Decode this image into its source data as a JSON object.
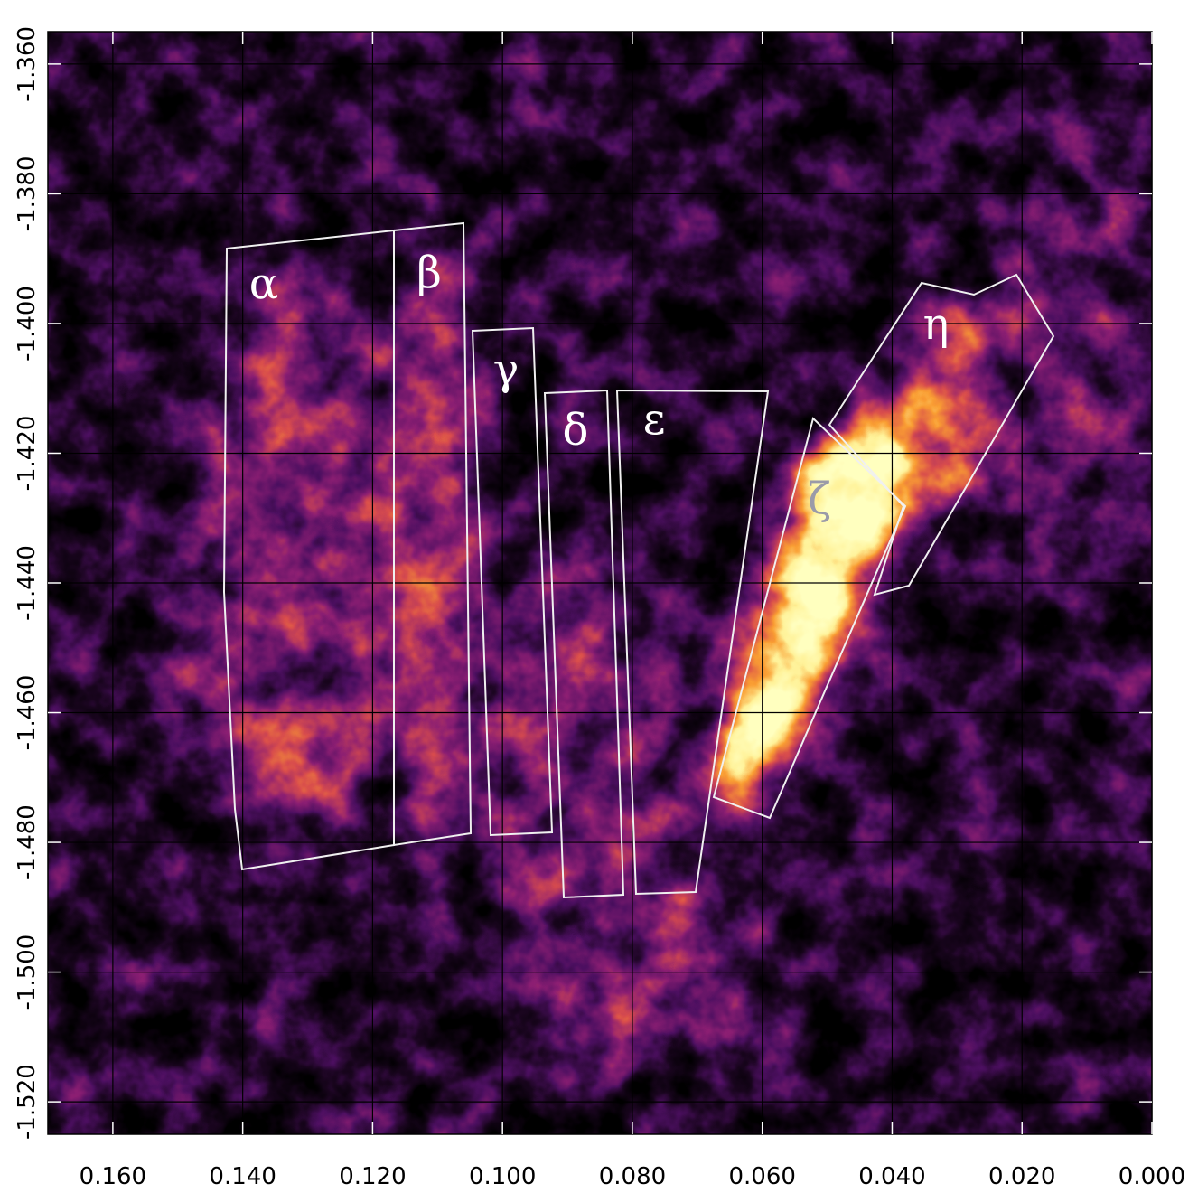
{
  "chart_data": {
    "type": "map",
    "xlim": [
      0.17,
      0.0
    ],
    "ylim": [
      -1.355,
      -1.525
    ],
    "xticks": [
      {
        "value": 0.16,
        "label": "0.160"
      },
      {
        "value": 0.14,
        "label": "0.140"
      },
      {
        "value": 0.12,
        "label": "0.120"
      },
      {
        "value": 0.1,
        "label": "0.100"
      },
      {
        "value": 0.08,
        "label": "0.080"
      },
      {
        "value": 0.06,
        "label": "0.060"
      },
      {
        "value": 0.04,
        "label": "0.040"
      },
      {
        "value": 0.02,
        "label": "0.020"
      },
      {
        "value": 0,
        "label": "0.000"
      }
    ],
    "yticks": [
      {
        "value": -1.36,
        "label": "-1.360"
      },
      {
        "value": -1.38,
        "label": "-1.380"
      },
      {
        "value": -1.4,
        "label": "-1.400"
      },
      {
        "value": -1.42,
        "label": "-1.420"
      },
      {
        "value": -1.44,
        "label": "-1.440"
      },
      {
        "value": -1.46,
        "label": "-1.460"
      },
      {
        "value": -1.48,
        "label": "-1.480"
      },
      {
        "value": -1.5,
        "label": "-1.500"
      },
      {
        "value": -1.52,
        "label": "-1.520"
      }
    ],
    "grid": true,
    "regions": [
      "α",
      "β",
      "γ",
      "δ",
      "ε",
      "ζ",
      "η"
    ]
  }
}
